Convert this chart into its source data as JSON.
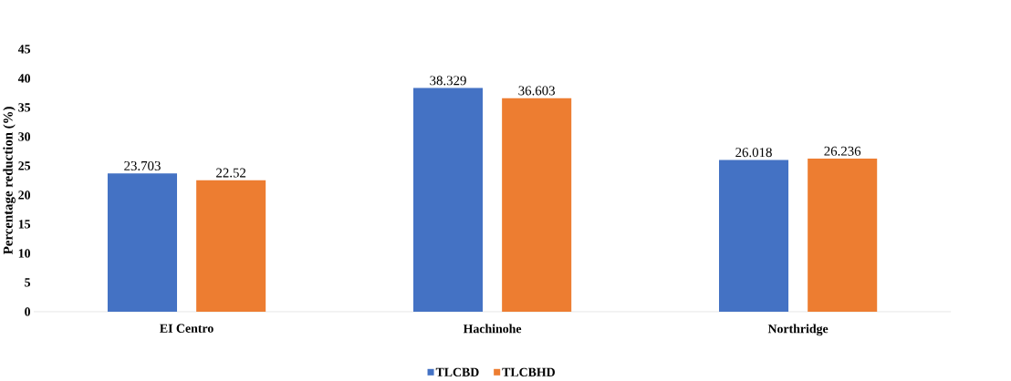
{
  "chart_data": {
    "type": "bar",
    "ylabel": "Percentage reduction (%)",
    "categories": [
      "EI Centro",
      "Hachinohe",
      "Northridge"
    ],
    "series": [
      {
        "name": "TLCBD",
        "color": "#4472c4",
        "values": [
          23.703,
          38.329,
          26.018
        ]
      },
      {
        "name": "TLCBHD",
        "color": "#ed7d31",
        "values": [
          22.52,
          36.603,
          26.236
        ]
      }
    ],
    "ylim": [
      0,
      45
    ],
    "yticks": [
      0,
      5,
      10,
      15,
      20,
      25,
      30,
      35,
      40,
      45
    ],
    "data_labels": true,
    "legend": "bottom"
  }
}
